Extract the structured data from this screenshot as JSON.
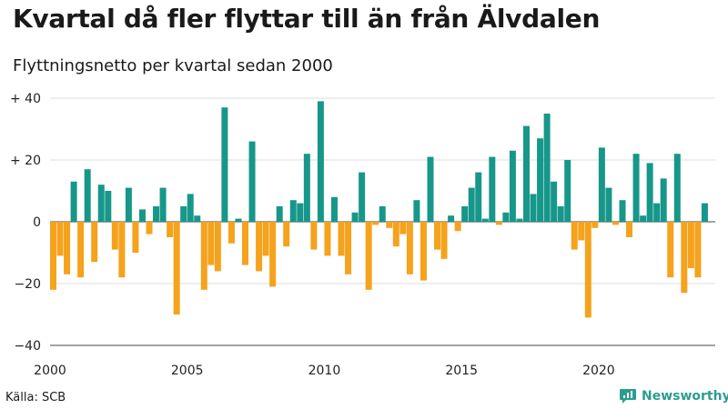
{
  "title": "Kvartal då fler flyttar till än från Älvdalen",
  "subtitle": "Flyttningsnetto per kvartal sedan 2000",
  "source": "Källa: SCB",
  "brand": {
    "name": "Newsworthy",
    "icon": "newsworthy-logo-icon"
  },
  "colors": {
    "positive": "#16978a",
    "negative": "#f5a21c",
    "grid": "#dddddd",
    "axis": "#444444"
  },
  "chart_data": {
    "type": "bar",
    "title": "Kvartal då fler flyttar till än från Älvdalen",
    "subtitle": "Flyttningsnetto per kvartal sedan 2000",
    "xlabel": "",
    "ylabel": "",
    "ylim": [
      -40,
      40
    ],
    "grid": true,
    "y_ticks": [
      {
        "value": 40,
        "label": "+ 40"
      },
      {
        "value": 20,
        "label": "+ 20"
      },
      {
        "value": 0,
        "label": "0"
      },
      {
        "value": -20,
        "label": "−20"
      },
      {
        "value": -40,
        "label": "−40"
      }
    ],
    "x_ticks": [
      {
        "value": 2000,
        "label": "2000"
      },
      {
        "value": 2005,
        "label": "2005"
      },
      {
        "value": 2010,
        "label": "2010"
      },
      {
        "value": 2015,
        "label": "2015"
      },
      {
        "value": 2020,
        "label": "2020"
      }
    ],
    "x_range": [
      2000,
      2024.25
    ],
    "start_year": 2000,
    "values": [
      -22,
      -11,
      -17,
      13,
      -18,
      17,
      -13,
      12,
      10,
      -9,
      -18,
      11,
      -10,
      4,
      -4,
      5,
      11,
      -5,
      -30,
      5,
      9,
      2,
      -22,
      -14,
      -16,
      37,
      -7,
      1,
      -14,
      26,
      -16,
      -11,
      -21,
      5,
      -8,
      7,
      6,
      22,
      -9,
      39,
      -11,
      8,
      -11,
      -17,
      3,
      16,
      -22,
      -1,
      5,
      -2,
      -8,
      -4,
      -17,
      7,
      -19,
      21,
      -9,
      -12,
      2,
      -3,
      5,
      11,
      16,
      1,
      21,
      -1,
      3,
      23,
      1,
      31,
      9,
      27,
      35,
      13,
      5,
      20,
      -9,
      -6,
      -31,
      -2,
      24,
      11,
      -1,
      7,
      -5,
      22,
      2,
      19,
      6,
      14,
      -18,
      22,
      -23,
      -15,
      -18,
      6
    ]
  }
}
